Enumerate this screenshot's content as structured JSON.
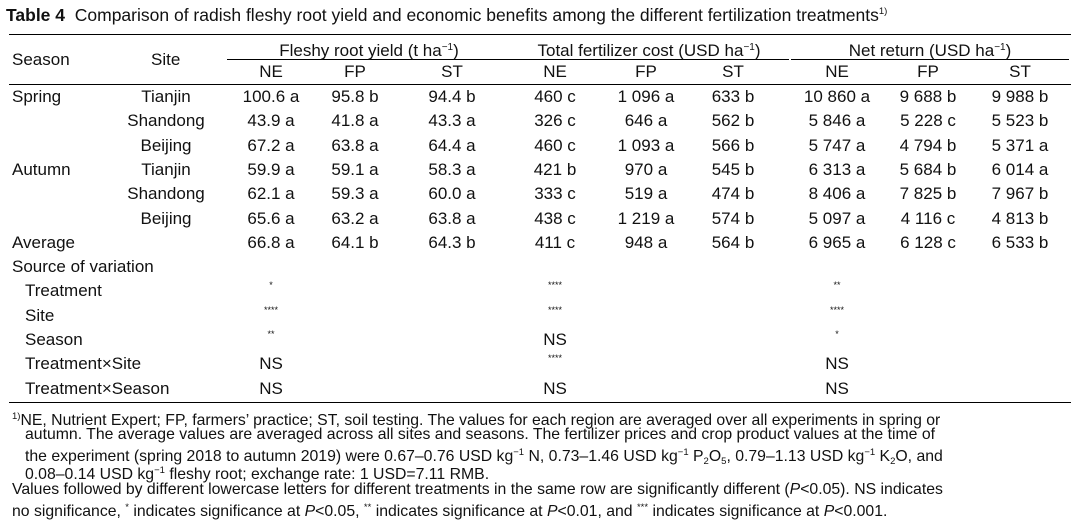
{
  "caption": {
    "label": "Table 4",
    "text": "Comparison of radish fleshy root yield and economic benefits among the different fertilization treatments",
    "footnote_mark": "1)"
  },
  "header": {
    "season": "Season",
    "site": "Site",
    "groups": [
      {
        "label": "Fleshy root yield (t ha",
        "exp": "−1",
        "close": ")"
      },
      {
        "label": "Total fertilizer cost (USD ha",
        "exp": "−1",
        "close": ")"
      },
      {
        "label": "Net return (USD ha",
        "exp": "−1",
        "close": ")"
      }
    ],
    "sub": [
      "NE",
      "FP",
      "ST",
      "NE",
      "FP",
      "ST",
      "NE",
      "FP",
      "ST"
    ]
  },
  "rows": [
    {
      "season": "Spring",
      "site": "Tianjin",
      "v": [
        "100.6 a",
        "95.8 b",
        "94.4 b",
        "460 c",
        "1 096 a",
        "633 b",
        "10 860 a",
        "9 688 b",
        "9 988 b"
      ]
    },
    {
      "season": "",
      "site": "Shandong",
      "v": [
        "43.9 a",
        "41.8 a",
        "43.3 a",
        "326 c",
        "646 a",
        "562 b",
        "5 846 a",
        "5 228 c",
        "5 523 b"
      ]
    },
    {
      "season": "",
      "site": "Beijing",
      "v": [
        "67.2 a",
        "63.8 a",
        "64.4 a",
        "460 c",
        "1 093 a",
        "566 b",
        "5 747 a",
        "4 794 b",
        "5 371 a"
      ]
    },
    {
      "season": "Autumn",
      "site": "Tianjin",
      "v": [
        "59.9 a",
        "59.1 a",
        "58.3 a",
        "421 b",
        "970 a",
        "545 b",
        "6 313 a",
        "5 684 b",
        "6 014 a"
      ]
    },
    {
      "season": "",
      "site": "Shandong",
      "v": [
        "62.1 a",
        "59.3 a",
        "60.0 a",
        "333 c",
        "519 a",
        "474 b",
        "8 406 a",
        "7 825 b",
        "7 967 b"
      ]
    },
    {
      "season": "",
      "site": "Beijing",
      "v": [
        "65.6 a",
        "63.2 a",
        "63.8 a",
        "438 c",
        "1 219 a",
        "574 b",
        "5 097 a",
        "4 116 c",
        "4 813 b"
      ]
    },
    {
      "season": "Average",
      "site": "",
      "v": [
        "66.8 a",
        "64.1 b",
        "64.3 b",
        "411 c",
        "948 a",
        "564 b",
        "6 965 a",
        "6 128 c",
        "6 533 b"
      ]
    }
  ],
  "variation": {
    "title": "Source of variation",
    "items": [
      {
        "label": "Treatment",
        "yield": "*",
        "cost": "****",
        "net": "**"
      },
      {
        "label": "Site",
        "yield": "****",
        "cost": "****",
        "net": "****"
      },
      {
        "label": "Season",
        "yield": "**",
        "cost": "NS",
        "net": "*"
      },
      {
        "label": "Treatment×Site",
        "yield": "NS",
        "cost": "****",
        "net": "NS"
      },
      {
        "label": "Treatment×Season",
        "yield": "NS",
        "cost": "NS",
        "net": "NS"
      }
    ]
  },
  "notes": {
    "n1_mark": "1)",
    "n1_a": "NE, Nutrient Expert; FP, farmers’ practice; ST, soil testing.  The values for each region are averaged over all experiments in spring or",
    "n1_b": "autumn.  The average values are averaged across all sites and seasons.  The fertilizer prices and crop product values at the time of",
    "n1_c1": "the experiment (spring 2018 to autumn 2019) were 0.67–0.76 USD kg",
    "n1_c2": " N, 0.73–1.46 USD kg",
    "n1_c3": " P",
    "n1_c4": "O",
    "n1_c5": ", 0.79–1.13 USD kg",
    "n1_c6": " K",
    "n1_c7": "O, and",
    "n1_d1": "0.08–0.14 USD kg",
    "n1_d2": " fleshy root; exchange rate: 1 USD=7.11 RMB.",
    "exp": "−1",
    "sub2": "2",
    "sub5": "5",
    "n2_a1": "Values followed by different lowercase letters for different treatments in the same row are significantly different (",
    "n2_a2": "P",
    "n2_a3": "<0.05).  NS indicates",
    "n2_b1": "no significance, ",
    "n2_b2": "*",
    "n2_b3": " indicates significance at ",
    "n2_b4": "P",
    "n2_b5": "<0.05, ",
    "n2_b6": "**",
    "n2_b7": " indicates significance at ",
    "n2_b8": "P",
    "n2_b9": "<0.01, and ",
    "n2_b10": "***",
    "n2_b11": " indicates significance at ",
    "n2_b12": "P",
    "n2_b13": "<0.001."
  }
}
